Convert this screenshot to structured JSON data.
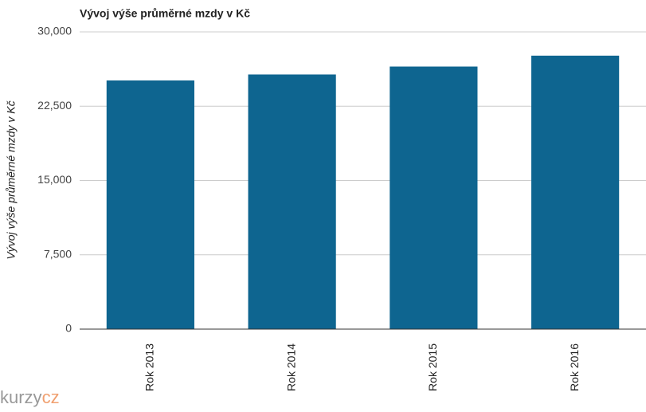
{
  "chart_data": {
    "type": "bar",
    "title": "Vývoj výše průměrné mzdy v Kč",
    "y_label": "Vývoj výše průměrné mzdy v Kč",
    "categories": [
      "Rok 2013",
      "Rok 2014",
      "Rok 2015",
      "Rok 2016"
    ],
    "values": [
      25100,
      25700,
      26500,
      27600
    ],
    "color": "#0e6590",
    "ylim": [
      0,
      30000
    ],
    "yticks": [
      0,
      {
        "value": 7500,
        "label": "7,500"
      },
      {
        "value": 15000,
        "label": "15,000"
      },
      {
        "value": 22500,
        "label": "22,500"
      },
      {
        "value": 30000,
        "label": "30,000"
      }
    ],
    "grid": true
  },
  "logo": {
    "name": "kurzy",
    "domain": "cz"
  }
}
